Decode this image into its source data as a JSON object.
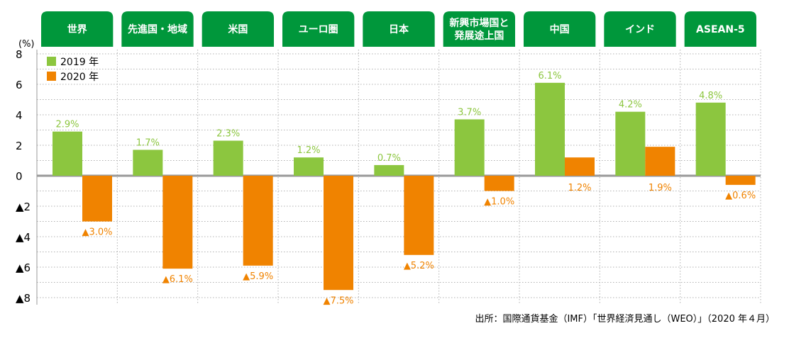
{
  "chart_data": {
    "type": "bar",
    "unit_label": "(%)",
    "categories": [
      "世界",
      "先進国・地域",
      "米国",
      "ユーロ圏",
      "日本",
      "新興市場国と\n発展途上国",
      "中国",
      "インド",
      "ASEAN-5"
    ],
    "series": [
      {
        "name": "2019 年",
        "color": "#8cc63f",
        "values": [
          2.9,
          1.7,
          2.3,
          1.2,
          0.7,
          3.7,
          6.1,
          4.2,
          4.8
        ],
        "labels": [
          "2.9%",
          "1.7%",
          "2.3%",
          "1.2%",
          "0.7%",
          "3.7%",
          "6.1%",
          "4.2%",
          "4.8%"
        ]
      },
      {
        "name": "2020 年",
        "color": "#f08300",
        "values": [
          -3.0,
          -6.1,
          -5.9,
          -7.5,
          -5.2,
          -1.0,
          1.2,
          1.9,
          -0.6
        ],
        "labels": [
          "▲3.0%",
          "▲6.1%",
          "▲5.9%",
          "▲7.5%",
          "▲5.2%",
          "▲1.0%",
          "1.2%",
          "1.9%",
          "▲0.6%"
        ]
      }
    ],
    "y_ticks": [
      "8",
      "6",
      "4",
      "2",
      "0",
      "▲2",
      "▲4",
      "▲6",
      "▲8"
    ],
    "ylim": [
      -8,
      8
    ],
    "grid": true,
    "legend": "top-left",
    "header_color": "#00973b",
    "source": "出所：国際通貨基金（IMF）「世界経済見通し（WEO）」（2020 年４月）"
  }
}
